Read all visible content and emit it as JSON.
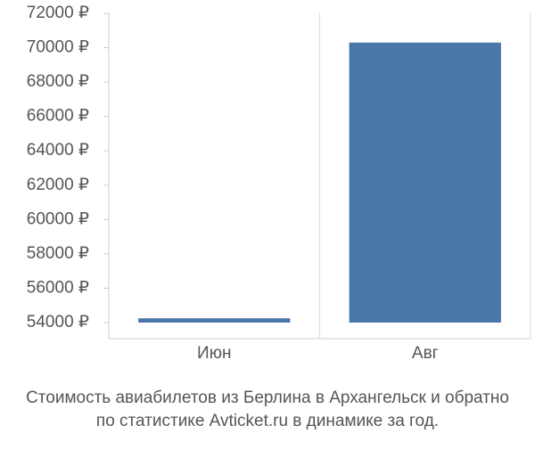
{
  "chart_data": {
    "type": "bar",
    "title": [
      "Стоимость авиабилетов из Берлина в Архангельск и обратно",
      "по статистике Avticket.ru в динамике за год."
    ],
    "categories": [
      "Июн",
      "Авг"
    ],
    "values": [
      54250,
      70300
    ],
    "color": "#4a76a8",
    "ylim": [
      54000,
      72000
    ],
    "yticks": [
      {
        "value": 54000,
        "label": "54000 ₽"
      },
      {
        "value": 56000,
        "label": "56000 ₽"
      },
      {
        "value": 58000,
        "label": "58000 ₽"
      },
      {
        "value": 60000,
        "label": "60000 ₽"
      },
      {
        "value": 62000,
        "label": "62000 ₽"
      },
      {
        "value": 64000,
        "label": "64000 ₽"
      },
      {
        "value": 66000,
        "label": "66000 ₽"
      },
      {
        "value": 68000,
        "label": "68000 ₽"
      },
      {
        "value": 70000,
        "label": "70000 ₽"
      },
      {
        "value": 72000,
        "label": "72000 ₽"
      }
    ]
  }
}
